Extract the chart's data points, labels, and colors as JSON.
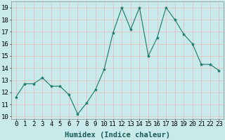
{
  "x": [
    0,
    1,
    2,
    3,
    4,
    5,
    6,
    7,
    8,
    9,
    10,
    11,
    12,
    13,
    14,
    15,
    16,
    17,
    18,
    19,
    20,
    21,
    22,
    23
  ],
  "y": [
    11.6,
    12.7,
    12.7,
    13.2,
    12.5,
    12.5,
    11.8,
    10.2,
    11.1,
    12.2,
    13.9,
    16.9,
    19.0,
    17.2,
    19.0,
    15.0,
    16.5,
    19.0,
    18.0,
    16.8,
    16.0,
    14.3,
    14.3,
    13.8
  ],
  "line_color": "#1a7a6a",
  "marker": "*",
  "marker_size": 3,
  "bg_color": "#c8eaea",
  "grid_color": "#e8b8b8",
  "xlabel": "Humidex (Indice chaleur)",
  "ylabel_ticks": [
    10,
    11,
    12,
    13,
    14,
    15,
    16,
    17,
    18,
    19
  ],
  "ylim": [
    9.8,
    19.5
  ],
  "xlim": [
    -0.5,
    23.5
  ],
  "xlabel_fontsize": 7.5,
  "tick_fontsize": 6.5
}
